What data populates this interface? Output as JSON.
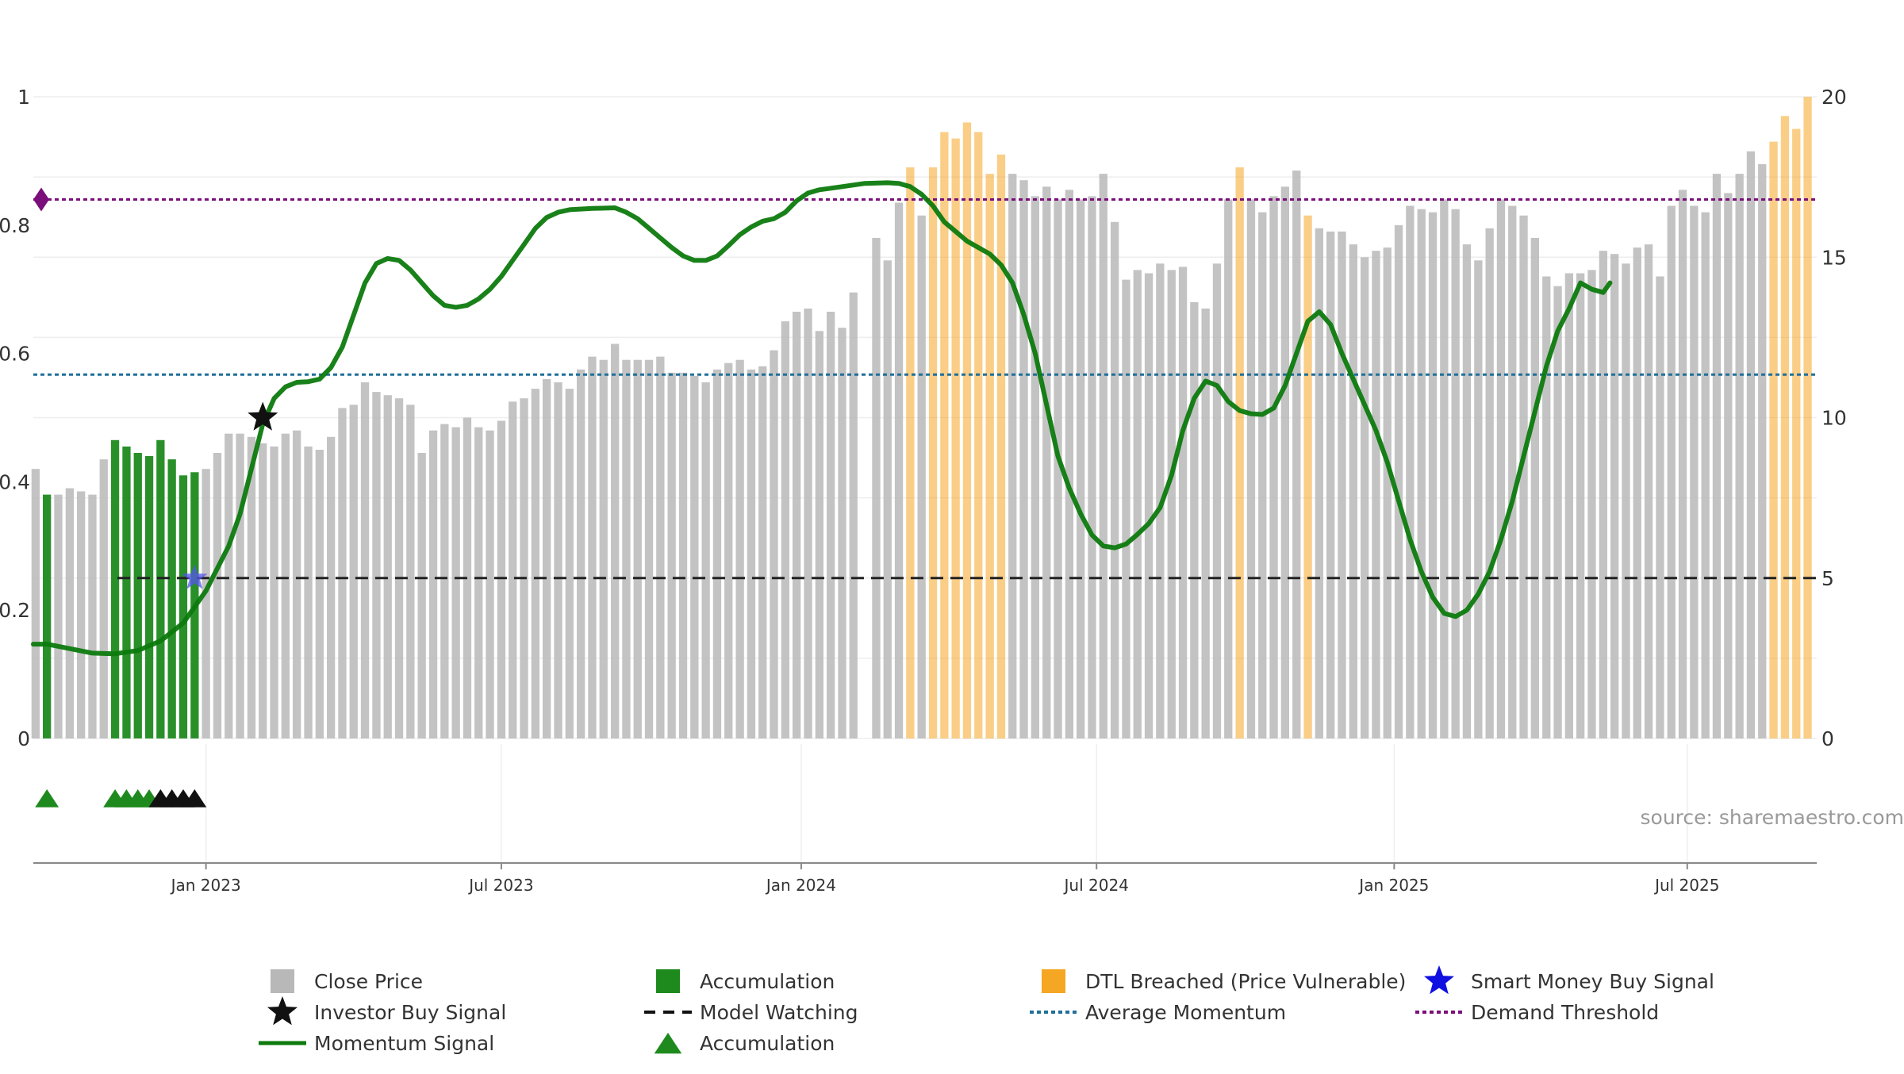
{
  "chart_data": {
    "type": "bar",
    "title": "",
    "xlabel": "",
    "ylabel": "",
    "y_left": {
      "ticks": [
        "0",
        "0.2",
        "0.4",
        "0.6",
        "0.8",
        "1"
      ],
      "range": [
        0,
        1
      ]
    },
    "y_right": {
      "ticks": [
        "0",
        "5",
        "10",
        "15",
        "20"
      ],
      "range": [
        0,
        20
      ]
    },
    "x_axis": {
      "ticks": [
        {
          "label": "Jan 2023",
          "week": 22
        },
        {
          "label": "Jul 2023",
          "week": 48
        },
        {
          "label": "Jan 2024",
          "week": 74.4
        },
        {
          "label": "Jul 2024",
          "week": 100.4
        },
        {
          "label": "Jan 2025",
          "week": 126.6
        },
        {
          "label": "Jul 2025",
          "week": 152.4
        }
      ],
      "week_range": [
        6.8,
        163.8
      ]
    },
    "source_text": "source: sharemaestro.com",
    "close_price": {
      "name": "Close Price",
      "color": "#b8b8b8",
      "values": [
        8.4,
        7.6,
        7.6,
        7.8,
        7.7,
        7.6,
        8.7,
        9.3,
        9.1,
        8.9,
        8.8,
        9.3,
        8.7,
        8.2,
        8.3,
        8.4,
        8.9,
        9.5,
        9.5,
        9.4,
        9.2,
        9.1,
        9.5,
        9.6,
        9.1,
        9.0,
        9.4,
        10.3,
        10.4,
        11.1,
        10.8,
        10.7,
        10.6,
        10.4,
        8.9,
        9.6,
        9.8,
        9.7,
        10.0,
        9.7,
        9.6,
        9.9,
        10.5,
        10.6,
        10.9,
        11.2,
        11.1,
        10.9,
        11.5,
        11.9,
        11.8,
        12.3,
        11.8,
        11.8,
        11.8,
        11.9,
        11.4,
        11.4,
        11.3,
        11.1,
        11.5,
        11.7,
        11.8,
        11.5,
        11.6,
        12.1,
        13.0,
        13.3,
        13.4,
        12.7,
        13.3,
        12.8,
        13.9,
        null,
        15.6,
        14.9,
        16.7,
        17.8,
        16.3,
        17.8,
        18.9,
        18.7,
        19.2,
        18.9,
        17.6,
        18.2,
        17.6,
        17.4,
        16.9,
        17.2,
        16.8,
        17.1,
        16.8,
        16.9,
        17.6,
        16.1,
        14.3,
        14.6,
        14.5,
        14.8,
        14.6,
        14.7,
        13.6,
        13.4,
        14.8,
        16.8,
        17.8,
        16.8,
        16.4,
        16.9,
        17.2,
        17.7,
        16.3,
        15.9,
        15.8,
        15.8,
        15.4,
        15.0,
        15.2,
        15.3,
        16.0,
        16.6,
        16.5,
        16.4,
        16.8,
        16.5,
        15.4,
        14.9,
        15.9,
        16.8,
        16.6,
        16.3,
        15.6,
        14.4,
        14.1,
        14.5,
        14.5,
        14.6,
        15.2,
        15.1,
        14.8,
        15.3,
        15.4,
        14.4,
        16.6,
        17.1,
        16.6,
        16.4,
        17.6,
        17.0,
        17.6,
        18.3,
        17.9,
        18.6,
        19.4,
        19.0,
        20.0
      ],
      "bar_class": [
        "g",
        "a",
        "g",
        "g",
        "g",
        "g",
        "g",
        "a",
        "a",
        "a",
        "a",
        "a",
        "a",
        "a",
        "a",
        "g",
        "g",
        "g",
        "g",
        "g",
        "g",
        "g",
        "g",
        "g",
        "g",
        "g",
        "g",
        "g",
        "g",
        "g",
        "g",
        "g",
        "g",
        "g",
        "g",
        "g",
        "g",
        "g",
        "g",
        "g",
        "g",
        "g",
        "g",
        "g",
        "g",
        "g",
        "g",
        "g",
        "g",
        "g",
        "g",
        "g",
        "g",
        "g",
        "g",
        "g",
        "g",
        "g",
        "g",
        "g",
        "g",
        "g",
        "g",
        "g",
        "g",
        "g",
        "g",
        "g",
        "g",
        "g",
        "g",
        "g",
        "g",
        "g",
        "g",
        "g",
        "g",
        "d",
        "g",
        "d",
        "d",
        "d",
        "d",
        "d",
        "d",
        "d",
        "g",
        "g",
        "g",
        "g",
        "g",
        "g",
        "g",
        "g",
        "g",
        "g",
        "g",
        "g",
        "g",
        "g",
        "g",
        "g",
        "g",
        "g",
        "g",
        "g",
        "d",
        "g",
        "g",
        "g",
        "g",
        "g",
        "d",
        "g",
        "g",
        "g",
        "g",
        "g",
        "g",
        "g",
        "g",
        "g",
        "g",
        "g",
        "g",
        "g",
        "g",
        "g",
        "g",
        "g",
        "g",
        "g",
        "g",
        "g",
        "g",
        "g",
        "g",
        "g",
        "g",
        "g",
        "g",
        "g",
        "g",
        "g",
        "g",
        "g",
        "g",
        "g",
        "g",
        "g",
        "g",
        "g",
        "g",
        "d",
        "d",
        "d",
        "d",
        "d",
        "d",
        "d"
      ]
    },
    "momentum_signal": {
      "name": "Momentum Signal",
      "color": "#0d7a0d",
      "points": [
        [
          6.8,
          0.147
        ],
        [
          8,
          0.147
        ],
        [
          10,
          0.14
        ],
        [
          12,
          0.133
        ],
        [
          14,
          0.132
        ],
        [
          16,
          0.137
        ],
        [
          18,
          0.152
        ],
        [
          20,
          0.18
        ],
        [
          22,
          0.23
        ],
        [
          24,
          0.3
        ],
        [
          25,
          0.35
        ],
        [
          26,
          0.42
        ],
        [
          27,
          0.49
        ],
        [
          28,
          0.53
        ],
        [
          29,
          0.548
        ],
        [
          30,
          0.555
        ],
        [
          31,
          0.556
        ],
        [
          32,
          0.56
        ],
        [
          33,
          0.578
        ],
        [
          34,
          0.61
        ],
        [
          35,
          0.66
        ],
        [
          36,
          0.71
        ],
        [
          37,
          0.74
        ],
        [
          38,
          0.748
        ],
        [
          39,
          0.745
        ],
        [
          40,
          0.73
        ],
        [
          41,
          0.71
        ],
        [
          42,
          0.69
        ],
        [
          43,
          0.675
        ],
        [
          44,
          0.672
        ],
        [
          45,
          0.675
        ],
        [
          46,
          0.685
        ],
        [
          47,
          0.7
        ],
        [
          48,
          0.72
        ],
        [
          49,
          0.745
        ],
        [
          50,
          0.77
        ],
        [
          51,
          0.795
        ],
        [
          52,
          0.812
        ],
        [
          53,
          0.82
        ],
        [
          54,
          0.824
        ],
        [
          56,
          0.826
        ],
        [
          58,
          0.827
        ],
        [
          59,
          0.82
        ],
        [
          60,
          0.81
        ],
        [
          61,
          0.795
        ],
        [
          62,
          0.78
        ],
        [
          63,
          0.765
        ],
        [
          64,
          0.752
        ],
        [
          65,
          0.745
        ],
        [
          66,
          0.745
        ],
        [
          67,
          0.752
        ],
        [
          68,
          0.768
        ],
        [
          69,
          0.785
        ],
        [
          70,
          0.797
        ],
        [
          71,
          0.806
        ],
        [
          72,
          0.81
        ],
        [
          73,
          0.82
        ],
        [
          74,
          0.838
        ],
        [
          75,
          0.85
        ],
        [
          76,
          0.855
        ],
        [
          78,
          0.86
        ],
        [
          80,
          0.865
        ],
        [
          82,
          0.866
        ],
        [
          83,
          0.865
        ],
        [
          84,
          0.86
        ],
        [
          85,
          0.848
        ],
        [
          86,
          0.83
        ],
        [
          87,
          0.805
        ],
        [
          88,
          0.79
        ],
        [
          89,
          0.775
        ],
        [
          90,
          0.765
        ],
        [
          91,
          0.755
        ],
        [
          92,
          0.738
        ],
        [
          93,
          0.71
        ],
        [
          94,
          0.66
        ],
        [
          95,
          0.6
        ],
        [
          96,
          0.52
        ],
        [
          97,
          0.44
        ],
        [
          98,
          0.39
        ],
        [
          99,
          0.35
        ],
        [
          100,
          0.317
        ],
        [
          101,
          0.3
        ],
        [
          102,
          0.297
        ],
        [
          103,
          0.303
        ],
        [
          104,
          0.318
        ],
        [
          105,
          0.335
        ],
        [
          106,
          0.36
        ],
        [
          107,
          0.41
        ],
        [
          108,
          0.48
        ],
        [
          109,
          0.53
        ],
        [
          110,
          0.557
        ],
        [
          111,
          0.55
        ],
        [
          112,
          0.525
        ],
        [
          113,
          0.511
        ],
        [
          114,
          0.506
        ],
        [
          115,
          0.505
        ],
        [
          116,
          0.515
        ],
        [
          117,
          0.55
        ],
        [
          118,
          0.6
        ],
        [
          119,
          0.65
        ],
        [
          120,
          0.665
        ],
        [
          121,
          0.645
        ],
        [
          122,
          0.6
        ],
        [
          123,
          0.56
        ],
        [
          124,
          0.52
        ],
        [
          125,
          0.48
        ],
        [
          126,
          0.43
        ],
        [
          127,
          0.37
        ],
        [
          128,
          0.31
        ],
        [
          129,
          0.26
        ],
        [
          130,
          0.22
        ],
        [
          131,
          0.195
        ],
        [
          132,
          0.19
        ],
        [
          133,
          0.2
        ],
        [
          134,
          0.225
        ],
        [
          135,
          0.26
        ],
        [
          136,
          0.31
        ],
        [
          137,
          0.37
        ],
        [
          138,
          0.44
        ],
        [
          139,
          0.51
        ],
        [
          140,
          0.58
        ],
        [
          141,
          0.635
        ],
        [
          142,
          0.67
        ],
        [
          143,
          0.71
        ],
        [
          144,
          0.7
        ],
        [
          145,
          0.695
        ],
        [
          145.6,
          0.71
        ]
      ]
    },
    "average_momentum": {
      "name": "Average Momentum",
      "value": 0.567,
      "color": "#1f6f99"
    },
    "demand_threshold": {
      "name": "Demand Threshold",
      "value": 0.84,
      "color": "#7a0e7a"
    },
    "model_watching": {
      "name": "Model Watching",
      "value": 0.25,
      "from_week": 14.2,
      "color": "#222222"
    },
    "investor_buy_signal": {
      "name": "Investor Buy Signal",
      "week": 27,
      "value": 0.5
    },
    "smart_money_buy_signal": {
      "name": "Smart Money Buy Signal",
      "week": 21,
      "value": 0.25
    },
    "accumulation_markers": {
      "name": "Accumulation",
      "green_weeks": [
        8,
        14,
        15,
        16,
        17
      ],
      "black_weeks": [
        18,
        19,
        20,
        21
      ]
    },
    "legend": {
      "placement": "bottom",
      "entries": [
        {
          "label": "Close Price",
          "kind": "square",
          "color": "#b8b8b8"
        },
        {
          "label": "Accumulation",
          "kind": "square",
          "color": "#1e8a1e"
        },
        {
          "label": "DTL Breached (Price Vulnerable)",
          "kind": "square",
          "color": "#f5a623"
        },
        {
          "label": "Smart Money Buy Signal",
          "kind": "star",
          "color": "#1010e0"
        },
        {
          "label": "Investor Buy Signal",
          "kind": "star",
          "color": "#111111"
        },
        {
          "label": "Model Watching",
          "kind": "dash",
          "color": "#111111"
        },
        {
          "label": "Average Momentum",
          "kind": "dot",
          "color": "#1f6f99"
        },
        {
          "label": "Demand Threshold",
          "kind": "dot",
          "color": "#7a0e7a"
        },
        {
          "label": "Momentum Signal",
          "kind": "line",
          "color": "#0d7a0d"
        },
        {
          "label": "Accumulation",
          "kind": "triangle",
          "color": "#1e8a1e"
        }
      ]
    },
    "colors": {
      "close": "#b8b8b8",
      "accumulation": "#1e8a1e",
      "dtl": "#f5a623",
      "grid": "#eeeeee",
      "axis": "#888888"
    }
  }
}
